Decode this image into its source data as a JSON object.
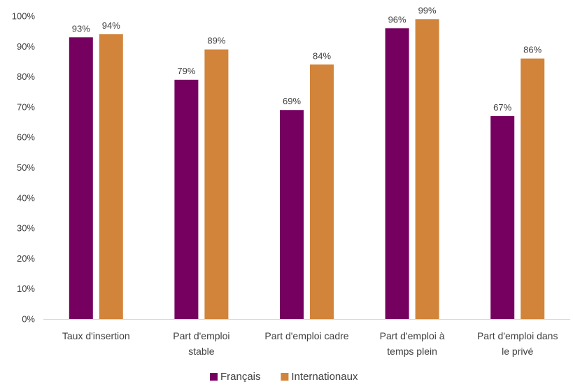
{
  "chart_data": {
    "type": "bar",
    "categories": [
      [
        "Taux d'insertion"
      ],
      [
        "Part d'emploi",
        "stable"
      ],
      [
        "Part d'emploi cadre"
      ],
      [
        "Part d'emploi à",
        "temps plein"
      ],
      [
        "Part d'emploi dans",
        "le privé"
      ]
    ],
    "series": [
      {
        "name": "Français",
        "color": "#760060",
        "values": [
          93,
          79,
          69,
          96,
          67
        ],
        "labels": [
          "93%",
          "79%",
          "69%",
          "96%",
          "67%"
        ]
      },
      {
        "name": "Internationaux",
        "color": "#D1843A",
        "values": [
          94,
          89,
          84,
          99,
          86
        ],
        "labels": [
          "94%",
          "89%",
          "84%",
          "99%",
          "86%"
        ]
      }
    ],
    "ylim": [
      0,
      100
    ],
    "yticks": [
      "0%",
      "10%",
      "20%",
      "30%",
      "40%",
      "50%",
      "60%",
      "70%",
      "80%",
      "90%",
      "100%"
    ],
    "grid": false,
    "legend": "bottom",
    "title": "",
    "xlabel": "",
    "ylabel": ""
  }
}
